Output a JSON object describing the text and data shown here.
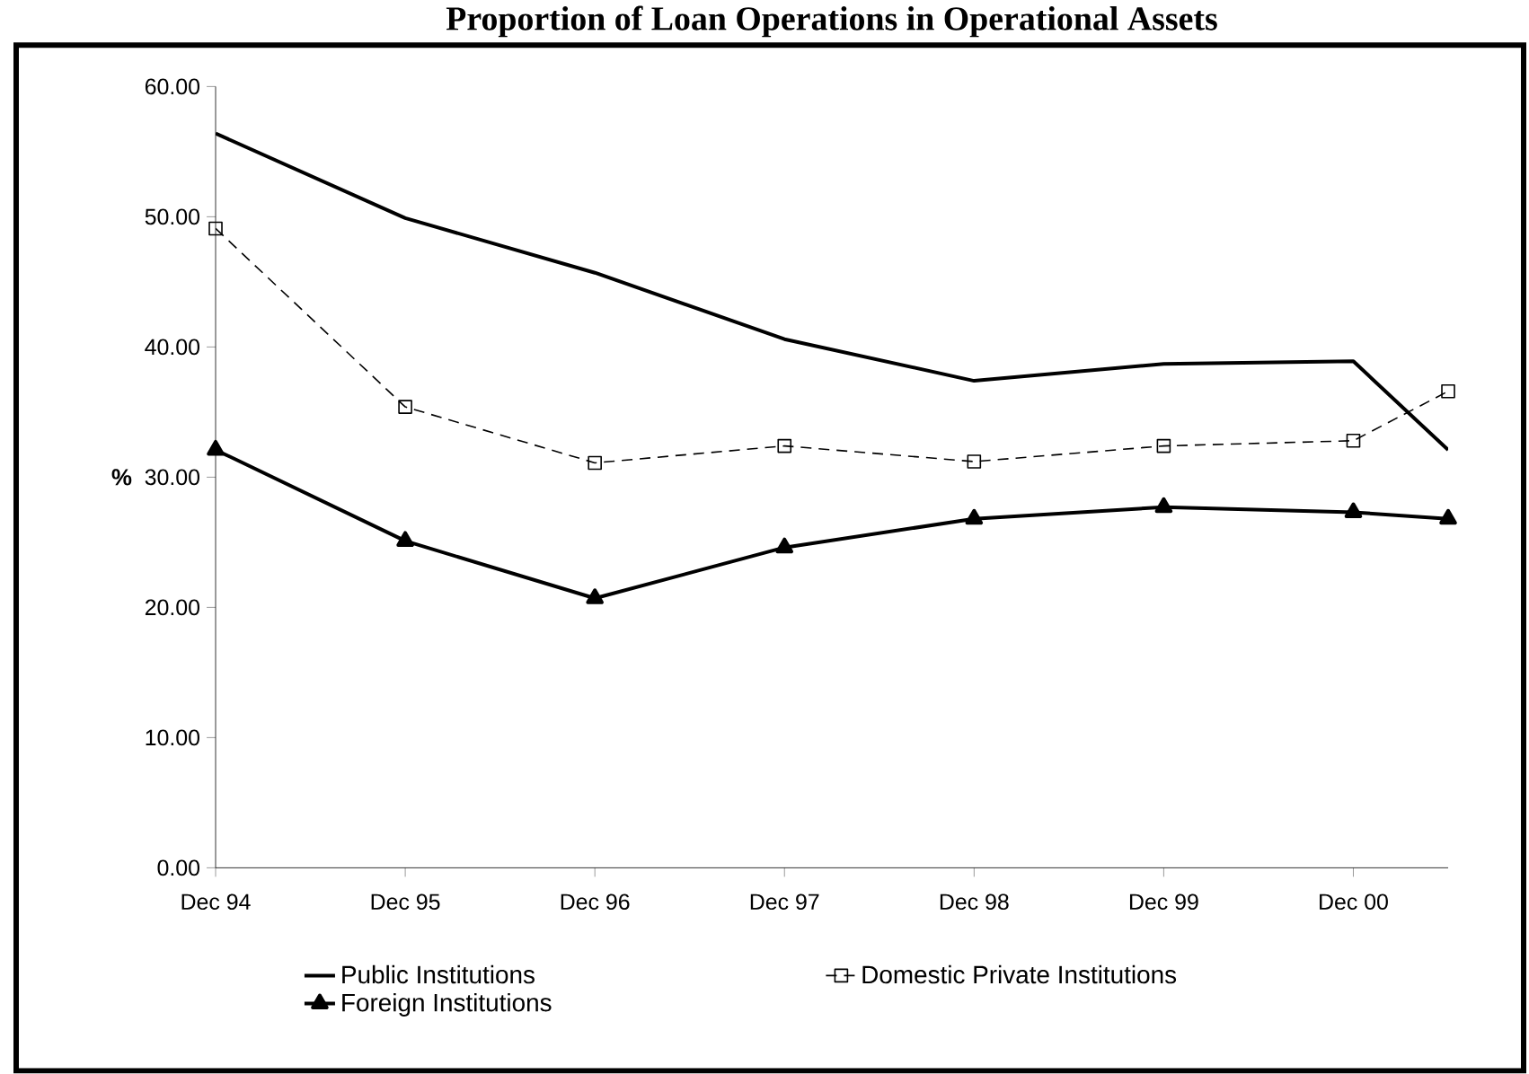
{
  "chart_data": {
    "type": "line",
    "title": "Proportion of Loan Operations in Operational Assets",
    "ylabel": "%",
    "x": [
      "1994-12",
      "1995-12",
      "1996-12",
      "1997-12",
      "1998-12",
      "1999-12",
      "2000-12",
      "2001-06"
    ],
    "xlim": [
      "1994-12",
      "2001-06"
    ],
    "xticks": [
      {
        "value": "1994-12",
        "label": "Dec 94"
      },
      {
        "value": "1995-12",
        "label": "Dec 95"
      },
      {
        "value": "1996-12",
        "label": "Dec 96"
      },
      {
        "value": "1997-12",
        "label": "Dec 97"
      },
      {
        "value": "1998-12",
        "label": "Dec 98"
      },
      {
        "value": "1999-12",
        "label": "Dec 99"
      },
      {
        "value": "2000-12",
        "label": "Dec 00"
      }
    ],
    "ylim": [
      0,
      60
    ],
    "yticks": [
      {
        "value": 0,
        "label": "0.00"
      },
      {
        "value": 10,
        "label": "10.00"
      },
      {
        "value": 20,
        "label": "20.00"
      },
      {
        "value": 30,
        "label": "30.00"
      },
      {
        "value": 40,
        "label": "40.00"
      },
      {
        "value": 50,
        "label": "50.00"
      },
      {
        "value": 60,
        "label": "60.00"
      }
    ],
    "grid": false,
    "legend": "bottom",
    "series": [
      {
        "name": "Public Institutions",
        "color": "#000000",
        "marker": "none",
        "line_style": "solid",
        "values": [
          56.4,
          49.9,
          45.7,
          40.6,
          37.4,
          38.7,
          38.9,
          32.1
        ]
      },
      {
        "name": "Domestic Private Institutions",
        "color": "#000000",
        "marker": "square",
        "line_style": "dashed",
        "values": [
          49.1,
          35.4,
          31.1,
          32.4,
          31.2,
          32.4,
          32.8,
          36.6
        ]
      },
      {
        "name": "Foreign Institutions",
        "color": "#000000",
        "marker": "triangle",
        "line_style": "solid",
        "values": [
          32.1,
          25.1,
          20.7,
          24.6,
          26.8,
          27.7,
          27.3,
          26.8
        ]
      }
    ]
  }
}
